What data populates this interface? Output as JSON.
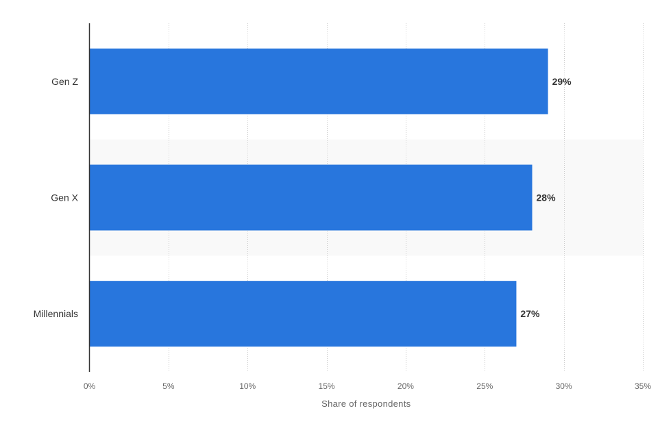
{
  "chart_data": {
    "type": "bar",
    "orientation": "horizontal",
    "categories": [
      "Gen Z",
      "Gen X",
      "Millennials"
    ],
    "values": [
      29,
      28,
      27
    ],
    "data_labels": [
      "29%",
      "28%",
      "27%"
    ],
    "xlabel": "Share of respondents",
    "xlim": [
      0,
      35
    ],
    "x_ticks": [
      {
        "value": 0,
        "label": "0%"
      },
      {
        "value": 5,
        "label": "5%"
      },
      {
        "value": 10,
        "label": "10%"
      },
      {
        "value": 15,
        "label": "15%"
      },
      {
        "value": 20,
        "label": "20%"
      },
      {
        "value": 25,
        "label": "25%"
      },
      {
        "value": 30,
        "label": "30%"
      },
      {
        "value": 35,
        "label": "35%"
      }
    ],
    "grid": true,
    "legend": "none",
    "colors": {
      "bar": "#2876dd",
      "grid": "#cccccc",
      "axis": "#333333",
      "band": "#f9f9f9"
    }
  }
}
